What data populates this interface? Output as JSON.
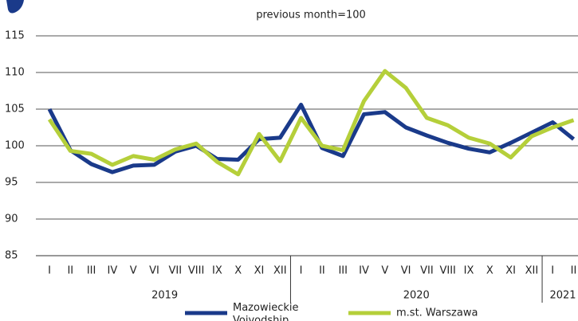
{
  "chart_data": {
    "type": "line",
    "title": "previous month=100",
    "category_groups": [
      {
        "label": "2019",
        "categories": [
          "I",
          "II",
          "III",
          "IV",
          "V",
          "VI",
          "VII",
          "VIII",
          "IX",
          "X",
          "XI",
          "XII"
        ]
      },
      {
        "label": "2020",
        "categories": [
          "I",
          "II",
          "III",
          "IV",
          "V",
          "VI",
          "VII",
          "VIII",
          "IX",
          "X",
          "XI",
          "XII"
        ]
      },
      {
        "label": "2021",
        "categories": [
          "I",
          "II"
        ]
      }
    ],
    "series": [
      {
        "name": "Mazowieckie Voivodship",
        "color": "#1a3a8a",
        "values": [
          105.0,
          99.4,
          97.5,
          96.4,
          97.3,
          97.4,
          99.2,
          100.0,
          98.2,
          98.1,
          100.9,
          101.1,
          105.6,
          99.7,
          98.6,
          104.3,
          104.6,
          102.5,
          101.4,
          100.4,
          99.6,
          99.1,
          100.4,
          101.8,
          103.2,
          100.9
        ]
      },
      {
        "name": "m.st. Warszawa",
        "color": "#b5cf3a",
        "values": [
          103.6,
          99.3,
          98.9,
          97.4,
          98.6,
          98.1,
          99.5,
          100.3,
          97.8,
          96.1,
          101.6,
          97.9,
          103.8,
          100.0,
          99.4,
          106.1,
          110.2,
          107.9,
          103.8,
          102.8,
          101.1,
          100.3,
          98.4,
          101.3,
          102.5,
          103.5
        ]
      }
    ],
    "ylim": [
      85,
      115
    ],
    "yticks": [
      85,
      90,
      95,
      100,
      105,
      110,
      115
    ],
    "grid": true
  }
}
